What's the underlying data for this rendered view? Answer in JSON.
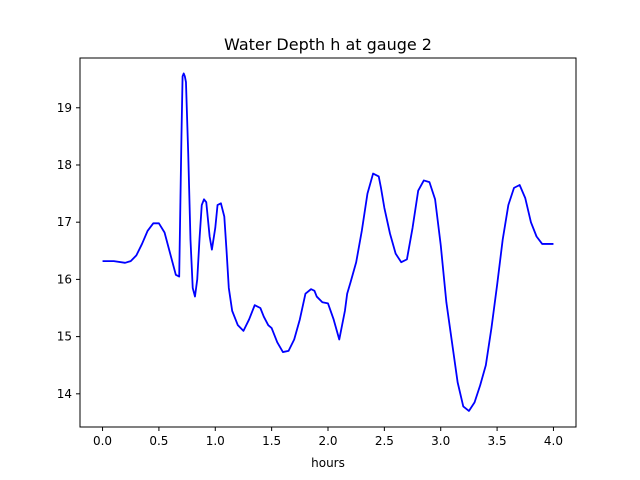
{
  "chart_data": {
    "type": "line",
    "title": "Water Depth h at gauge 2",
    "xlabel": "hours",
    "ylabel": "",
    "xlim": [
      -0.2,
      4.2
    ],
    "ylim": [
      13.42,
      19.87
    ],
    "xticks": [
      0.0,
      0.5,
      1.0,
      1.5,
      2.0,
      2.5,
      3.0,
      3.5,
      4.0
    ],
    "xtick_labels": [
      "0.0",
      "0.5",
      "1.0",
      "1.5",
      "2.0",
      "2.5",
      "3.0",
      "3.5",
      "4.0"
    ],
    "yticks": [
      14,
      15,
      16,
      17,
      18,
      19
    ],
    "ytick_labels": [
      "14",
      "15",
      "16",
      "17",
      "18",
      "19"
    ],
    "grid": false,
    "series": [
      {
        "color": "#0000ff",
        "x": [
          0.0,
          0.1,
          0.2,
          0.25,
          0.3,
          0.35,
          0.4,
          0.45,
          0.5,
          0.55,
          0.6,
          0.65,
          0.68,
          0.7,
          0.71,
          0.72,
          0.73,
          0.74,
          0.76,
          0.78,
          0.8,
          0.82,
          0.84,
          0.86,
          0.88,
          0.9,
          0.92,
          0.95,
          0.97,
          1.0,
          1.02,
          1.05,
          1.08,
          1.1,
          1.12,
          1.15,
          1.18,
          1.2,
          1.25,
          1.3,
          1.35,
          1.4,
          1.43,
          1.47,
          1.5,
          1.55,
          1.6,
          1.65,
          1.7,
          1.75,
          1.8,
          1.85,
          1.88,
          1.9,
          1.95,
          2.0,
          2.05,
          2.1,
          2.15,
          2.17,
          2.2,
          2.25,
          2.3,
          2.35,
          2.4,
          2.45,
          2.47,
          2.5,
          2.55,
          2.6,
          2.65,
          2.7,
          2.75,
          2.8,
          2.85,
          2.9,
          2.95,
          3.0,
          3.05,
          3.1,
          3.15,
          3.2,
          3.25,
          3.3,
          3.35,
          3.4,
          3.45,
          3.5,
          3.55,
          3.6,
          3.65,
          3.7,
          3.75,
          3.8,
          3.85,
          3.9,
          3.95,
          4.0
        ],
        "y": [
          16.32,
          16.32,
          16.29,
          16.32,
          16.42,
          16.62,
          16.85,
          16.98,
          16.98,
          16.82,
          16.45,
          16.08,
          16.05,
          18.5,
          19.55,
          19.6,
          19.55,
          19.45,
          18.2,
          16.7,
          15.85,
          15.7,
          16.0,
          16.7,
          17.3,
          17.4,
          17.35,
          16.75,
          16.52,
          16.9,
          17.3,
          17.33,
          17.1,
          16.5,
          15.85,
          15.45,
          15.3,
          15.2,
          15.1,
          15.3,
          15.55,
          15.5,
          15.35,
          15.2,
          15.15,
          14.9,
          14.73,
          14.75,
          14.95,
          15.3,
          15.75,
          15.83,
          15.8,
          15.7,
          15.6,
          15.58,
          15.3,
          14.95,
          15.45,
          15.75,
          15.95,
          16.3,
          16.85,
          17.5,
          17.85,
          17.8,
          17.6,
          17.25,
          16.8,
          16.45,
          16.3,
          16.35,
          16.9,
          17.55,
          17.73,
          17.7,
          17.4,
          16.6,
          15.6,
          14.9,
          14.2,
          13.78,
          13.7,
          13.85,
          14.15,
          14.5,
          15.15,
          15.9,
          16.7,
          17.3,
          17.6,
          17.65,
          17.42,
          17.0,
          16.75,
          16.62,
          16.62,
          16.62
        ]
      }
    ]
  }
}
